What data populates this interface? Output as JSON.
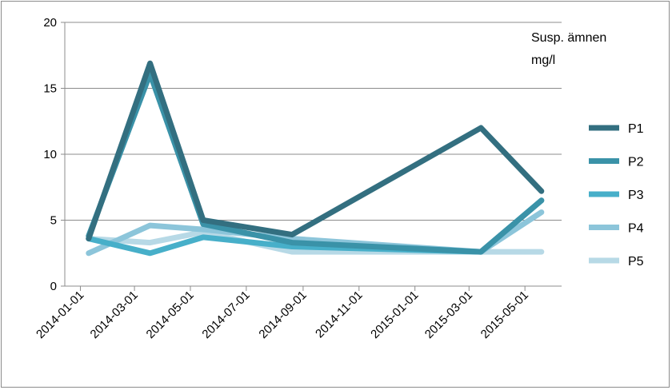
{
  "chart_data": {
    "type": "line",
    "title": "",
    "xlabel": "",
    "ylabel": "",
    "annotation": [
      "Susp. ämnen",
      "mg/l"
    ],
    "ylim": [
      0,
      20
    ],
    "yticks": [
      0,
      5,
      10,
      15,
      20
    ],
    "xlim": [
      "2013-12-15",
      "2015-06-10"
    ],
    "xticks": [
      "2014-01-01",
      "2014-03-01",
      "2014-05-01",
      "2014-07-01",
      "2014-09-01",
      "2014-11-01",
      "2015-01-01",
      "2015-03-01",
      "2015-05-01"
    ],
    "grid": true,
    "legend": "right",
    "x": [
      "2014-01-10",
      "2014-03-18",
      "2014-05-15",
      "2014-08-20",
      "2015-03-14",
      "2015-05-19"
    ],
    "series": [
      {
        "name": "P1",
        "color": "#336f80",
        "values": [
          3.6,
          16.9,
          5.0,
          3.9,
          12.0,
          7.2
        ]
      },
      {
        "name": "P2",
        "color": "#3a92a8",
        "values": [
          3.8,
          16.1,
          4.7,
          3.3,
          2.6,
          6.5
        ]
      },
      {
        "name": "P3",
        "color": "#47afc9",
        "values": [
          3.6,
          2.5,
          3.7,
          3.0,
          2.6,
          6.5
        ]
      },
      {
        "name": "P4",
        "color": "#8cc5da",
        "values": [
          2.5,
          4.6,
          4.3,
          3.6,
          2.6,
          5.6
        ]
      },
      {
        "name": "P5",
        "color": "#b7d9e6",
        "values": [
          3.6,
          3.3,
          4.1,
          2.6,
          2.6,
          2.6
        ]
      }
    ]
  }
}
